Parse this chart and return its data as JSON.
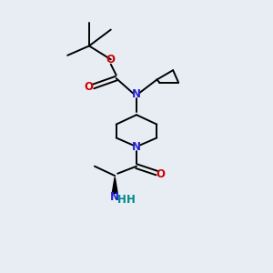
{
  "background_color": "#e8edf4",
  "atom_colors": {
    "C": "#000000",
    "N": "#2222cc",
    "O": "#cc0000",
    "H": "#008888"
  },
  "figsize": [
    3.0,
    3.0
  ],
  "dpi": 100,
  "lw": 1.4,
  "fs": 8.5
}
